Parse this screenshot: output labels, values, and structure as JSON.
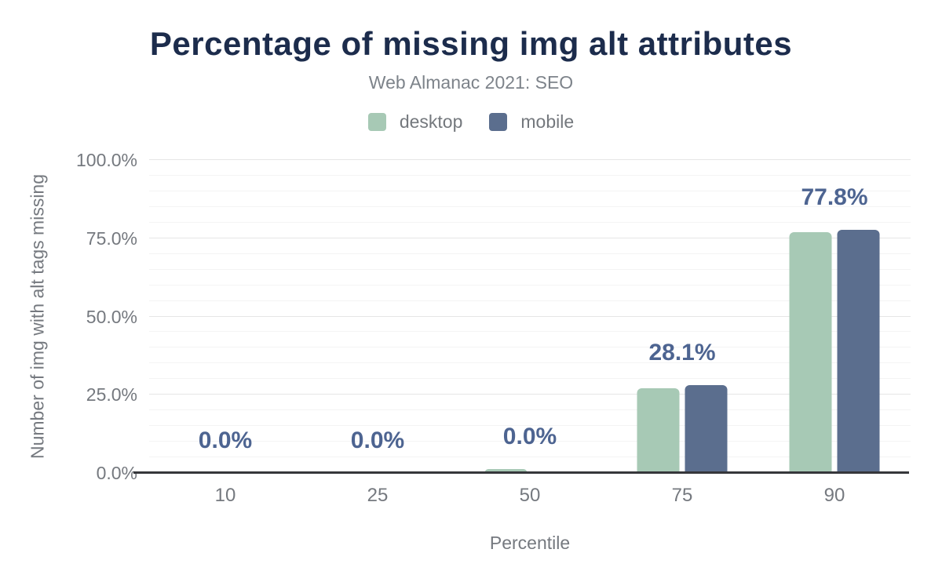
{
  "header": {
    "title": "Percentage of missing img alt attributes",
    "subtitle": "Web Almanac 2021: SEO"
  },
  "legend": {
    "items": [
      {
        "label": "desktop",
        "color": "#a7c9b5"
      },
      {
        "label": "mobile",
        "color": "#5b6e8e"
      }
    ]
  },
  "axes": {
    "x_title": "Percentile",
    "y_title": "Number of img with alt tags missing"
  },
  "colors": {
    "title": "#1c2c4c",
    "subtitle": "#7d838a",
    "axis_text": "#75797f",
    "data_label": "#4d6491",
    "axis_line": "#36373b",
    "grid_major": "#e6e6e6",
    "grid_minor": "#f4f4f4",
    "background": "#ffffff"
  },
  "chart_data": {
    "type": "bar",
    "title": "Percentage of missing img alt attributes",
    "subtitle": "Web Almanac 2021: SEO",
    "categories": [
      "10",
      "25",
      "50",
      "75",
      "90"
    ],
    "series": [
      {
        "name": "desktop",
        "color": "#a7c9b5",
        "values": [
          0,
          0,
          1.2,
          27.0,
          77.0
        ]
      },
      {
        "name": "mobile",
        "color": "#5b6e8e",
        "values": [
          0,
          0,
          0,
          28.1,
          77.8
        ]
      }
    ],
    "bar_labels": [
      "0.0%",
      "0.0%",
      "0.0%",
      "28.1%",
      "77.8%"
    ],
    "xlabel": "Percentile",
    "ylabel": "Number of img with alt tags missing",
    "ylim": [
      0,
      100
    ],
    "yticks": [
      {
        "value": 0,
        "label": "0.0%"
      },
      {
        "value": 25,
        "label": "25.0%"
      },
      {
        "value": 50,
        "label": "50.0%"
      },
      {
        "value": 75,
        "label": "75.0%"
      },
      {
        "value": 100,
        "label": "100.0%"
      }
    ],
    "grid": {
      "minor_step": 5,
      "major_step": 25
    },
    "legend_position": "top"
  }
}
